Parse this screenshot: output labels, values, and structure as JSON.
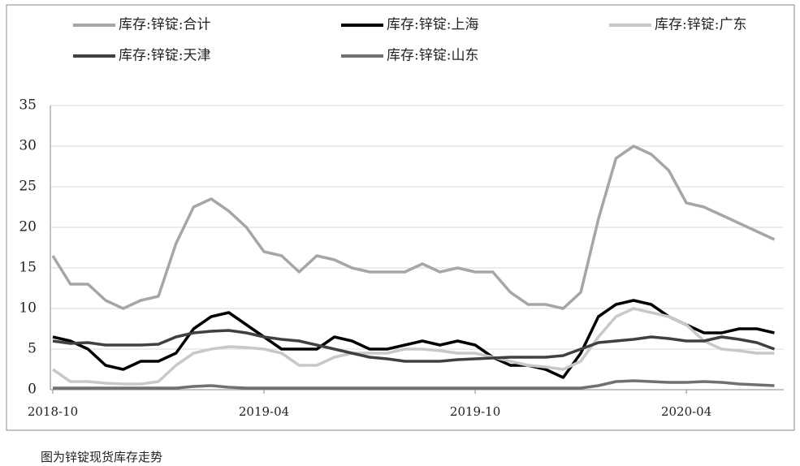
{
  "chart_data": {
    "type": "line",
    "categories": [
      "2018-10",
      null,
      null,
      null,
      null,
      null,
      null,
      null,
      null,
      null,
      null,
      null,
      "2019-04",
      null,
      null,
      null,
      null,
      null,
      null,
      null,
      null,
      null,
      null,
      null,
      "2019-10",
      null,
      null,
      null,
      null,
      null,
      null,
      null,
      null,
      null,
      null,
      null,
      "2020-04",
      null,
      null,
      null,
      null,
      null
    ],
    "series": [
      {
        "name": "库存:锌锭:合计",
        "color": "#a6a6a6",
        "values": [
          16.5,
          13,
          13,
          11,
          10,
          11,
          11.5,
          18,
          22.5,
          23.5,
          22,
          20,
          17,
          16.5,
          14.5,
          16.5,
          16,
          15,
          14.5,
          14.5,
          14.5,
          15.5,
          14.5,
          15,
          14.5,
          14.5,
          12,
          10.5,
          10.5,
          10,
          12,
          21,
          28.5,
          30,
          29,
          27,
          23,
          22.5,
          21.5,
          20.5,
          19.5,
          18.5
        ]
      },
      {
        "name": "库存:锌锭:上海",
        "color": "#000000",
        "values": [
          6.5,
          6,
          5,
          3,
          2.5,
          3.5,
          3.5,
          4.5,
          7.5,
          9,
          9.5,
          8,
          6.5,
          5,
          5,
          5,
          6.5,
          6,
          5,
          5,
          5.5,
          6,
          5.5,
          6,
          5.5,
          4,
          3,
          3,
          2.5,
          1.5,
          4.5,
          9,
          10.5,
          11,
          10.5,
          9,
          8,
          7,
          7,
          7.5,
          7.5,
          7
        ]
      },
      {
        "name": "库存:锌锭:广东",
        "color": "#c8c8c8",
        "values": [
          2.5,
          1,
          1,
          0.8,
          0.7,
          0.7,
          1,
          3,
          4.5,
          5,
          5.3,
          5.2,
          5,
          4.5,
          3,
          3,
          4,
          4.5,
          4.5,
          4.5,
          5,
          5,
          4.8,
          4.5,
          4.5,
          4,
          3.5,
          3,
          2.8,
          2.5,
          3.5,
          6.5,
          9,
          10,
          9.5,
          9,
          8,
          6,
          5,
          4.8,
          4.5,
          4.5
        ]
      },
      {
        "name": "库存:锌锭:天津",
        "color": "#404040",
        "values": [
          6,
          5.7,
          5.8,
          5.5,
          5.5,
          5.5,
          5.6,
          6.5,
          7,
          7.2,
          7.3,
          7,
          6.5,
          6.2,
          6,
          5.5,
          5,
          4.5,
          4,
          3.8,
          3.5,
          3.5,
          3.5,
          3.7,
          3.8,
          3.9,
          4,
          4,
          4,
          4.2,
          5,
          5.8,
          6,
          6.2,
          6.5,
          6.3,
          6,
          6,
          6.5,
          6.2,
          5.8,
          5
        ]
      },
      {
        "name": "库存:锌锭:山东",
        "color": "#707070",
        "values": [
          0.2,
          0.2,
          0.2,
          0.2,
          0.2,
          0.2,
          0.2,
          0.2,
          0.4,
          0.5,
          0.3,
          0.2,
          0.2,
          0.2,
          0.2,
          0.2,
          0.2,
          0.2,
          0.2,
          0.2,
          0.2,
          0.2,
          0.2,
          0.2,
          0.2,
          0.2,
          0.2,
          0.2,
          0.2,
          0.2,
          0.2,
          0.5,
          1,
          1.1,
          1,
          0.9,
          0.9,
          1,
          0.9,
          0.7,
          0.6,
          0.5
        ]
      }
    ],
    "ylim": [
      0,
      35
    ],
    "yticks": [
      0,
      5,
      10,
      15,
      20,
      25,
      30,
      35
    ],
    "grid": true
  },
  "caption": "图为锌锭现货库存走势"
}
